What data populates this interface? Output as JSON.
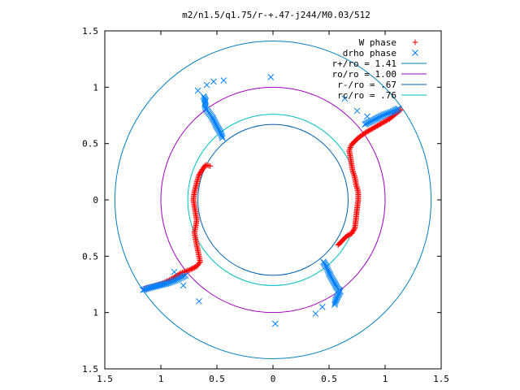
{
  "chart_data": {
    "type": "scatter",
    "title": "m2/n1.5/q1.75/r-+.47-j244/M0.03/512",
    "xlabel": "",
    "ylabel": "",
    "xlim": [
      -1.5,
      1.5
    ],
    "ylim": [
      -1.5,
      1.5
    ],
    "x_ticks": [
      -1.5,
      -1,
      -0.5,
      0,
      0.5,
      1,
      1.5
    ],
    "y_ticks": [
      -1.5,
      -1,
      -0.5,
      0,
      0.5,
      1,
      1.5
    ],
    "x_tick_labels": [
      "1.5",
      "1",
      "0.5",
      "0",
      "0.5",
      "1",
      "1.5"
    ],
    "y_tick_labels": [
      "1.5",
      "1",
      "0.5",
      "0",
      "0.5",
      "1",
      "1.5"
    ],
    "grid": false,
    "legend_position": "top-right",
    "colors": {
      "w_phase": "#ff0000",
      "drho_phase": "#0080ff",
      "r_plus": "#0080c0",
      "r_o": "#a000c0",
      "r_minus": "#0060b0",
      "r_c": "#00c0c0"
    },
    "circles": [
      {
        "key": "r_plus",
        "name": "r+/ro = 1.41",
        "radius": 1.41
      },
      {
        "key": "r_o",
        "name": "ro/ro = 1.00",
        "radius": 1.0
      },
      {
        "key": "r_minus",
        "name": "r-/ro = .67",
        "radius": 0.67
      },
      {
        "key": "r_c",
        "name": "rc/ro = .76",
        "radius": 0.76
      }
    ],
    "series": [
      {
        "key": "w_phase",
        "name": "W phase",
        "marker": "plus",
        "segments": [
          [
            [
              -0.56,
              0.3
            ],
            [
              -0.6,
              0.31
            ],
            [
              -0.63,
              0.27
            ],
            [
              -0.66,
              0.22
            ],
            [
              -0.68,
              0.15
            ],
            [
              -0.7,
              0.07
            ],
            [
              -0.71,
              0.0
            ],
            [
              -0.7,
              -0.06
            ],
            [
              -0.69,
              -0.12
            ],
            [
              -0.68,
              -0.18
            ],
            [
              -0.69,
              -0.24
            ],
            [
              -0.7,
              -0.29
            ],
            [
              -0.69,
              -0.35
            ],
            [
              -0.68,
              -0.4
            ],
            [
              -0.67,
              -0.45
            ],
            [
              -0.66,
              -0.5
            ],
            [
              -0.65,
              -0.55
            ],
            [
              -0.68,
              -0.59
            ],
            [
              -0.74,
              -0.62
            ],
            [
              -0.82,
              -0.65
            ],
            [
              -0.9,
              -0.7
            ],
            [
              -0.98,
              -0.74
            ],
            [
              -1.07,
              -0.77
            ],
            [
              -1.15,
              -0.79
            ]
          ],
          [
            [
              0.58,
              -0.4
            ],
            [
              0.62,
              -0.36
            ],
            [
              0.66,
              -0.32
            ],
            [
              0.7,
              -0.3
            ],
            [
              0.73,
              -0.25
            ],
            [
              0.74,
              -0.17
            ],
            [
              0.75,
              -0.08
            ],
            [
              0.76,
              0.0
            ],
            [
              0.76,
              0.07
            ],
            [
              0.74,
              0.14
            ],
            [
              0.73,
              0.2
            ],
            [
              0.71,
              0.26
            ],
            [
              0.7,
              0.32
            ],
            [
              0.69,
              0.38
            ],
            [
              0.68,
              0.44
            ],
            [
              0.7,
              0.49
            ],
            [
              0.76,
              0.55
            ],
            [
              0.83,
              0.6
            ],
            [
              0.9,
              0.64
            ],
            [
              0.97,
              0.68
            ],
            [
              1.04,
              0.72
            ],
            [
              1.1,
              0.77
            ],
            [
              1.14,
              0.8
            ]
          ]
        ]
      },
      {
        "key": "drho_phase",
        "name": "drho phase",
        "marker": "cross",
        "segments": [
          [
            [
              -0.62,
              0.92
            ],
            [
              -0.6,
              0.88
            ],
            [
              -0.61,
              0.85
            ],
            [
              -0.6,
              0.81
            ],
            [
              -0.57,
              0.77
            ],
            [
              -0.54,
              0.73
            ],
            [
              -0.52,
              0.69
            ],
            [
              -0.5,
              0.65
            ],
            [
              -0.47,
              0.6
            ],
            [
              -0.45,
              0.55
            ]
          ],
          [
            [
              0.45,
              -0.55
            ],
            [
              0.48,
              -0.6
            ],
            [
              0.5,
              -0.65
            ],
            [
              0.52,
              -0.69
            ],
            [
              0.55,
              -0.74
            ],
            [
              0.57,
              -0.78
            ],
            [
              0.6,
              -0.81
            ],
            [
              0.58,
              -0.85
            ],
            [
              0.56,
              -0.89
            ],
            [
              0.55,
              -0.93
            ]
          ],
          [
            [
              0.82,
              0.67
            ],
            [
              0.88,
              0.7
            ],
            [
              0.94,
              0.73
            ],
            [
              1.0,
              0.76
            ],
            [
              1.06,
              0.78
            ],
            [
              1.12,
              0.81
            ]
          ],
          [
            [
              -0.78,
              -0.67
            ],
            [
              -0.86,
              -0.71
            ],
            [
              -0.94,
              -0.74
            ],
            [
              -1.02,
              -0.76
            ],
            [
              -1.1,
              -0.78
            ],
            [
              -1.16,
              -0.8
            ]
          ],
          [
            [
              -0.67,
              0.97
            ],
            [
              -0.59,
              1.02
            ],
            [
              -0.53,
              1.05
            ],
            [
              -0.44,
              1.06
            ],
            [
              -0.02,
              1.09
            ],
            [
              0.64,
              0.9
            ],
            [
              0.75,
              0.79
            ],
            [
              0.84,
              0.74
            ],
            [
              0.38,
              -1.01
            ],
            [
              0.44,
              -0.95
            ],
            [
              -0.8,
              -0.76
            ],
            [
              -0.88,
              -0.64
            ],
            [
              -0.66,
              -0.9
            ],
            [
              0.02,
              -1.1
            ]
          ]
        ]
      }
    ]
  }
}
